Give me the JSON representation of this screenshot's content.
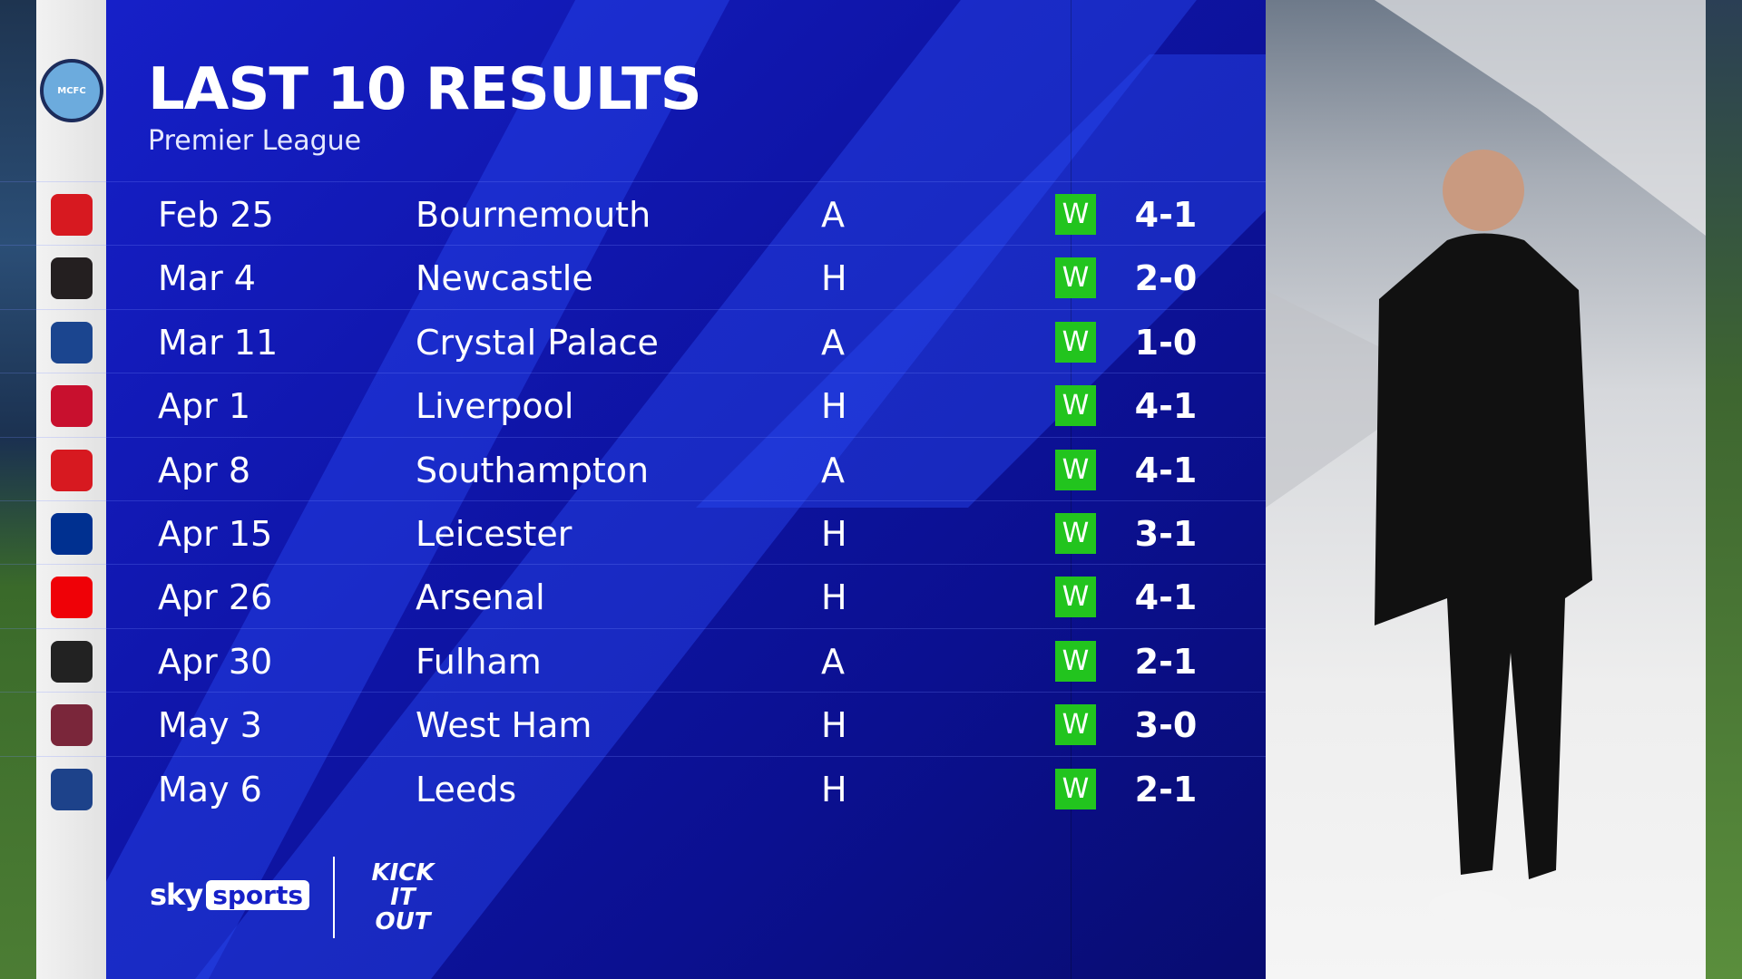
{
  "header": {
    "title": "LAST 10 RESULTS",
    "subtitle": "Premier League"
  },
  "team_badge": "MCFC",
  "colors": {
    "panel": "#1620c8",
    "win": "#22c41e"
  },
  "results": [
    {
      "date": "Feb 25",
      "opponent": "Bournemouth",
      "venue": "A",
      "result": "W",
      "score": "4-1",
      "badge_color": "#d71920"
    },
    {
      "date": "Mar 4",
      "opponent": "Newcastle",
      "venue": "H",
      "result": "W",
      "score": "2-0",
      "badge_color": "#241f20"
    },
    {
      "date": "Mar 11",
      "opponent": "Crystal Palace",
      "venue": "A",
      "result": "W",
      "score": "1-0",
      "badge_color": "#1b458f"
    },
    {
      "date": "Apr 1",
      "opponent": "Liverpool",
      "venue": "H",
      "result": "W",
      "score": "4-1",
      "badge_color": "#c8102e"
    },
    {
      "date": "Apr 8",
      "opponent": "Southampton",
      "venue": "A",
      "result": "W",
      "score": "4-1",
      "badge_color": "#d71920"
    },
    {
      "date": "Apr 15",
      "opponent": "Leicester",
      "venue": "H",
      "result": "W",
      "score": "3-1",
      "badge_color": "#003090"
    },
    {
      "date": "Apr 26",
      "opponent": "Arsenal",
      "venue": "H",
      "result": "W",
      "score": "4-1",
      "badge_color": "#ef0107"
    },
    {
      "date": "Apr 30",
      "opponent": "Fulham",
      "venue": "A",
      "result": "W",
      "score": "2-1",
      "badge_color": "#222222"
    },
    {
      "date": "May 3",
      "opponent": "West Ham",
      "venue": "H",
      "result": "W",
      "score": "3-0",
      "badge_color": "#7a263a"
    },
    {
      "date": "May 6",
      "opponent": "Leeds",
      "venue": "H",
      "result": "W",
      "score": "2-1",
      "badge_color": "#1d428a"
    }
  ],
  "footer": {
    "sky": "sky",
    "sports": "sports",
    "kick_it_out": "KICK IT OUT"
  }
}
